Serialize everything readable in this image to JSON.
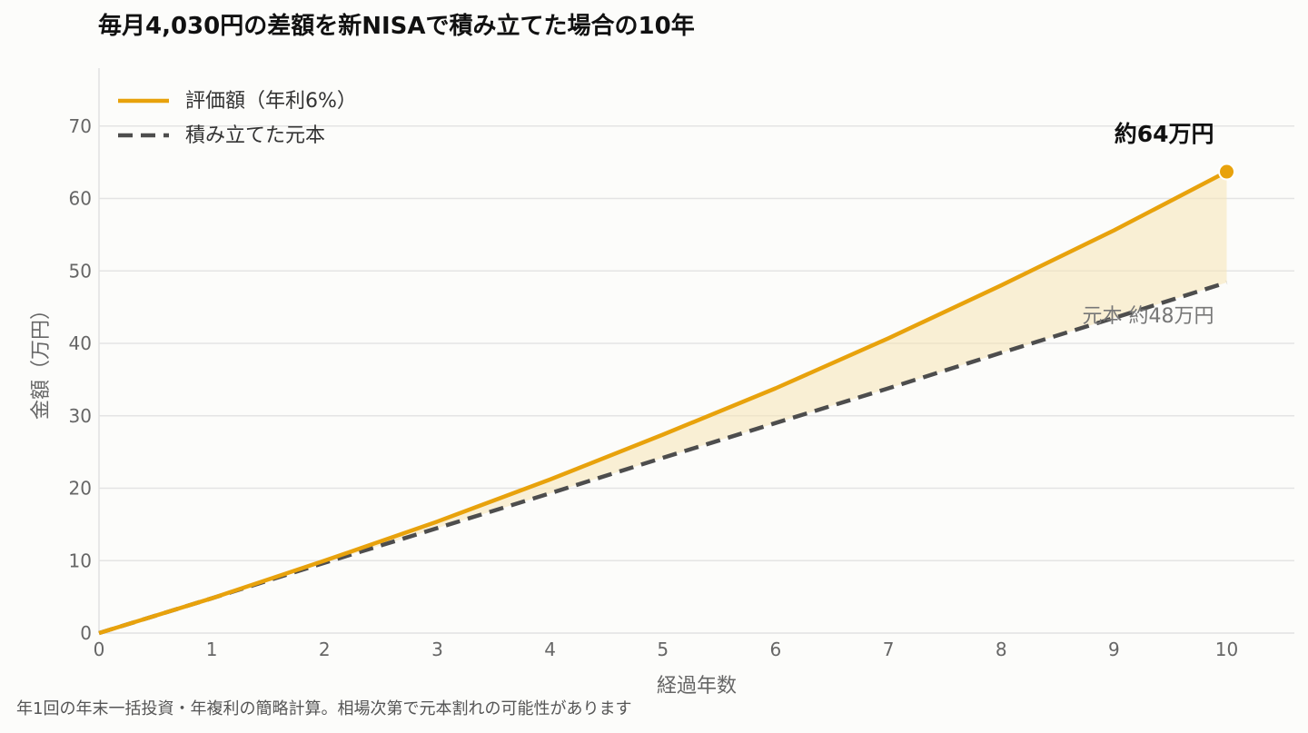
{
  "title": "毎月4,030円の差額を新NISAで積み立てた場合の10年",
  "footnote": "年1回の年末一括投資・年複利の簡略計算。相場次第で元本割れの可能性があります",
  "chart_data": {
    "type": "line",
    "xlabel": "経過年数",
    "ylabel": "金額（万円）",
    "xlim": [
      0,
      10.6
    ],
    "ylim": [
      0,
      78
    ],
    "xticks": [
      0,
      1,
      2,
      3,
      4,
      5,
      6,
      7,
      8,
      9,
      10
    ],
    "yticks": [
      0,
      10,
      20,
      30,
      40,
      50,
      60,
      70
    ],
    "grid": "horizontal",
    "legend_position": "top-left",
    "fill_between": true,
    "x": [
      0,
      1,
      2,
      3,
      4,
      5,
      6,
      7,
      8,
      9,
      10
    ],
    "series": [
      {
        "name": "評価額（年利6%）",
        "style": "solid",
        "color": "#e8a20c",
        "values": [
          0,
          4.8,
          10.0,
          15.4,
          21.2,
          27.4,
          33.8,
          40.7,
          48.0,
          55.6,
          63.7
        ]
      },
      {
        "name": "積み立てた元本",
        "style": "dashed",
        "color": "#4d4d4d",
        "values": [
          0,
          4.8,
          9.7,
          14.5,
          19.3,
          24.2,
          29.0,
          33.8,
          38.7,
          43.5,
          48.4
        ]
      }
    ],
    "annotations": [
      {
        "text": "約64万円",
        "x": 10,
        "y": 63.7,
        "series": 0,
        "style": "bold"
      },
      {
        "text": "元本 約48万円",
        "x": 10,
        "y": 48.4,
        "series": 1,
        "style": "muted"
      }
    ],
    "fill_color": "#f6e3b4"
  }
}
